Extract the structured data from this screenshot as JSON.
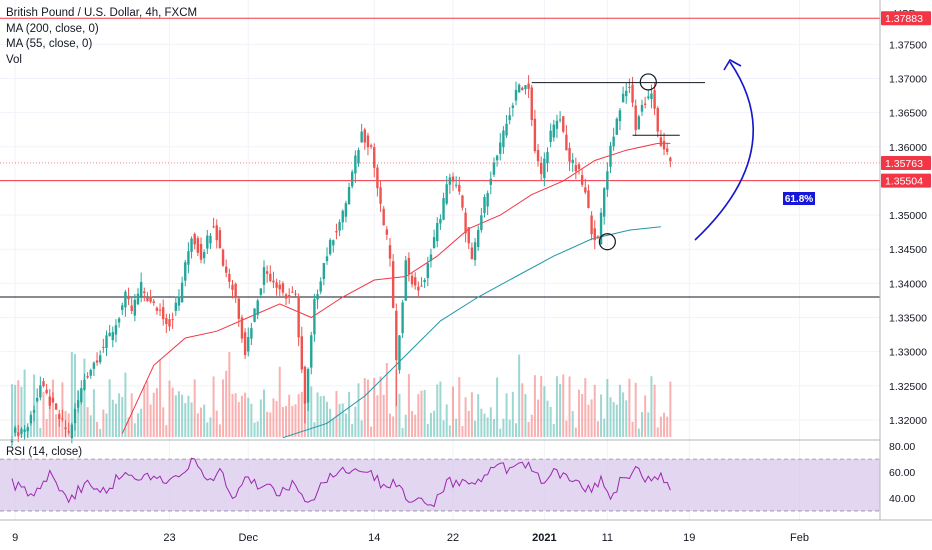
{
  "legend": {
    "symbol": "British Pound / U.S. Dollar, 4h, FXCM",
    "ma200": "MA (200, close, 0)",
    "ma55": "MA (55, close, 0)",
    "vol": "Vol"
  },
  "rsi_legend": "RSI (14, close)",
  "currency_label": "USD",
  "price_badges": [
    {
      "text": "1.37883",
      "color": "#f23645"
    },
    {
      "text": "1.35763",
      "color": "#f23645"
    },
    {
      "text": "1.35504",
      "color": "#f23645"
    }
  ],
  "fib_label": "61.8%",
  "colors": {
    "up": "#26a69a",
    "down": "#ef5350",
    "ma200": "#2196a8",
    "ma55": "#f23645",
    "rsi_line": "#9c27b0",
    "rsi_band": "#d9c8ec",
    "fib_box": "#1717d8",
    "arrow": "#1717cc"
  },
  "chart_data": [
    {
      "type": "candlestick",
      "title": "British Pound / U.S. Dollar, 4h, FXCM",
      "ylabel": "USD",
      "ylim": [
        1.3175,
        1.3815
      ],
      "y_ticks": [
        "1.32000",
        "1.32500",
        "1.33000",
        "1.33500",
        "1.34000",
        "1.34500",
        "1.35000",
        "1.35500",
        "1.36000",
        "1.36500",
        "1.37000",
        "1.37500"
      ],
      "x_ticks": [
        "9",
        "23",
        "Dec",
        "14",
        "22",
        "2021",
        "11",
        "19",
        "Feb"
      ],
      "grid": true,
      "price_path": [
        [
          0,
          1.318
        ],
        [
          5,
          1.319
        ],
        [
          9,
          1.325
        ],
        [
          14,
          1.321
        ],
        [
          18,
          1.318
        ],
        [
          23,
          1.326
        ],
        [
          28,
          1.33
        ],
        [
          33,
          1.334
        ],
        [
          36,
          1.338
        ],
        [
          38,
          1.336
        ],
        [
          41,
          1.3395
        ],
        [
          44,
          1.337
        ],
        [
          47,
          1.336
        ],
        [
          50,
          1.334
        ],
        [
          53,
          1.338
        ],
        [
          57,
          1.347
        ],
        [
          60,
          1.344
        ],
        [
          64,
          1.349
        ],
        [
          67,
          1.343
        ],
        [
          71,
          1.338
        ],
        [
          74,
          1.33
        ],
        [
          77,
          1.336
        ],
        [
          80,
          1.342
        ],
        [
          84,
          1.34
        ],
        [
          87,
          1.338
        ],
        [
          90,
          1.338
        ],
        [
          93,
          1.322
        ],
        [
          96,
          1.337
        ],
        [
          99,
          1.343
        ],
        [
          102,
          1.347
        ],
        [
          105,
          1.35
        ],
        [
          108,
          1.356
        ],
        [
          111,
          1.362
        ],
        [
          114,
          1.36
        ],
        [
          117,
          1.351
        ],
        [
          120,
          1.344
        ],
        [
          122,
          1.328
        ],
        [
          125,
          1.343
        ],
        [
          128,
          1.339
        ],
        [
          131,
          1.34
        ],
        [
          133,
          1.345
        ],
        [
          136,
          1.35
        ],
        [
          139,
          1.356
        ],
        [
          142,
          1.353
        ],
        [
          144,
          1.348
        ],
        [
          146,
          1.343
        ],
        [
          149,
          1.35
        ],
        [
          152,
          1.356
        ],
        [
          155,
          1.36
        ],
        [
          158,
          1.365
        ],
        [
          161,
          1.369
        ],
        [
          164,
          1.369
        ],
        [
          166,
          1.359
        ],
        [
          168,
          1.356
        ],
        [
          171,
          1.362
        ],
        [
          174,
          1.364
        ],
        [
          177,
          1.358
        ],
        [
          180,
          1.356
        ],
        [
          182,
          1.353
        ],
        [
          184,
          1.348
        ],
        [
          186,
          1.346
        ],
        [
          188,
          1.354
        ],
        [
          190,
          1.36
        ],
        [
          193,
          1.366
        ],
        [
          196,
          1.369
        ],
        [
          198,
          1.363
        ],
        [
          200,
          1.366
        ],
        [
          203,
          1.368
        ],
        [
          205,
          1.362
        ],
        [
          207,
          1.359
        ],
        [
          209,
          1.358
        ]
      ],
      "extra_wicks": [
        {
          "bar": 164,
          "high": 1.3705
        },
        {
          "bar": 185,
          "low": 1.345
        },
        {
          "bar": 196,
          "high": 1.37
        },
        {
          "bar": 93,
          "low": 1.3195
        },
        {
          "bar": 122,
          "low": 1.322
        }
      ],
      "series": [
        {
          "name": "MA (200, close, 0)",
          "color": "#2196a8",
          "points": [
            [
              86,
              1.3174
            ],
            [
              100,
              1.3195
            ],
            [
              112,
              1.3235
            ],
            [
              124,
              1.329
            ],
            [
              136,
              1.3345
            ],
            [
              148,
              1.338
            ],
            [
              160,
              1.341
            ],
            [
              172,
              1.344
            ],
            [
              184,
              1.3465
            ],
            [
              196,
              1.3478
            ],
            [
              206,
              1.3483
            ]
          ]
        },
        {
          "name": "MA (55, close, 0)",
          "color": "#f23645",
          "points": [
            [
              35,
              1.318
            ],
            [
              45,
              1.328
            ],
            [
              55,
              1.332
            ],
            [
              65,
              1.333
            ],
            [
              75,
              1.335
            ],
            [
              85,
              1.337
            ],
            [
              95,
              1.335
            ],
            [
              105,
              1.338
            ],
            [
              115,
              1.3405
            ],
            [
              125,
              1.341
            ],
            [
              135,
              1.344
            ],
            [
              145,
              1.348
            ],
            [
              155,
              1.35
            ],
            [
              165,
              1.353
            ],
            [
              175,
              1.355
            ],
            [
              185,
              1.358
            ],
            [
              195,
              1.3595
            ],
            [
              205,
              1.3605
            ],
            [
              209,
              1.3605
            ]
          ]
        }
      ],
      "horizontal_lines": [
        {
          "y": 1.37883,
          "color": "#f23645"
        },
        {
          "y": 1.35504,
          "color": "#f23645"
        },
        {
          "y": 1.338,
          "color": "#131722"
        }
      ],
      "annotations": [
        {
          "kind": "segment",
          "x0": 165,
          "x1": 220,
          "y": 1.3694,
          "color": "#131722"
        },
        {
          "kind": "segment",
          "x0": 197,
          "x1": 212,
          "y": 1.3617,
          "color": "#131722"
        },
        {
          "kind": "circle",
          "bar": 202,
          "y": 1.3695
        },
        {
          "kind": "circle",
          "bar": 189,
          "y": 1.3461
        }
      ]
    },
    {
      "type": "line",
      "title": "RSI (14, close)",
      "ylim": [
        23,
        84
      ],
      "y_ticks": [
        "80.00",
        "60.00",
        "40.00"
      ],
      "band": [
        30,
        70
      ],
      "series": [
        {
          "name": "RSI (14, close)",
          "color": "#9c27b0",
          "points": [
            [
              0,
              52
            ],
            [
              6,
              42
            ],
            [
              12,
              60
            ],
            [
              18,
              38
            ],
            [
              24,
              52
            ],
            [
              30,
              47
            ],
            [
              36,
              60
            ],
            [
              42,
              56
            ],
            [
              48,
              54
            ],
            [
              54,
              61
            ],
            [
              58,
              68
            ],
            [
              62,
              53
            ],
            [
              66,
              60
            ],
            [
              70,
              40
            ],
            [
              74,
              54
            ],
            [
              80,
              49
            ],
            [
              86,
              45
            ],
            [
              90,
              52
            ],
            [
              94,
              38
            ],
            [
              97,
              45
            ],
            [
              102,
              58
            ],
            [
              106,
              60
            ],
            [
              110,
              62
            ],
            [
              114,
              58
            ],
            [
              118,
              50
            ],
            [
              122,
              53
            ],
            [
              126,
              37
            ],
            [
              130,
              42
            ],
            [
              134,
              34
            ],
            [
              138,
              54
            ],
            [
              142,
              50
            ],
            [
              146,
              52
            ],
            [
              150,
              55
            ],
            [
              154,
              65
            ],
            [
              158,
              62
            ],
            [
              162,
              67
            ],
            [
              166,
              60
            ],
            [
              168,
              52
            ],
            [
              172,
              63
            ],
            [
              176,
              56
            ],
            [
              180,
              53
            ],
            [
              184,
              45
            ],
            [
              187,
              55
            ],
            [
              190,
              40
            ],
            [
              194,
              58
            ],
            [
              198,
              60
            ],
            [
              202,
              55
            ],
            [
              206,
              56
            ],
            [
              209,
              46
            ]
          ]
        }
      ]
    }
  ]
}
